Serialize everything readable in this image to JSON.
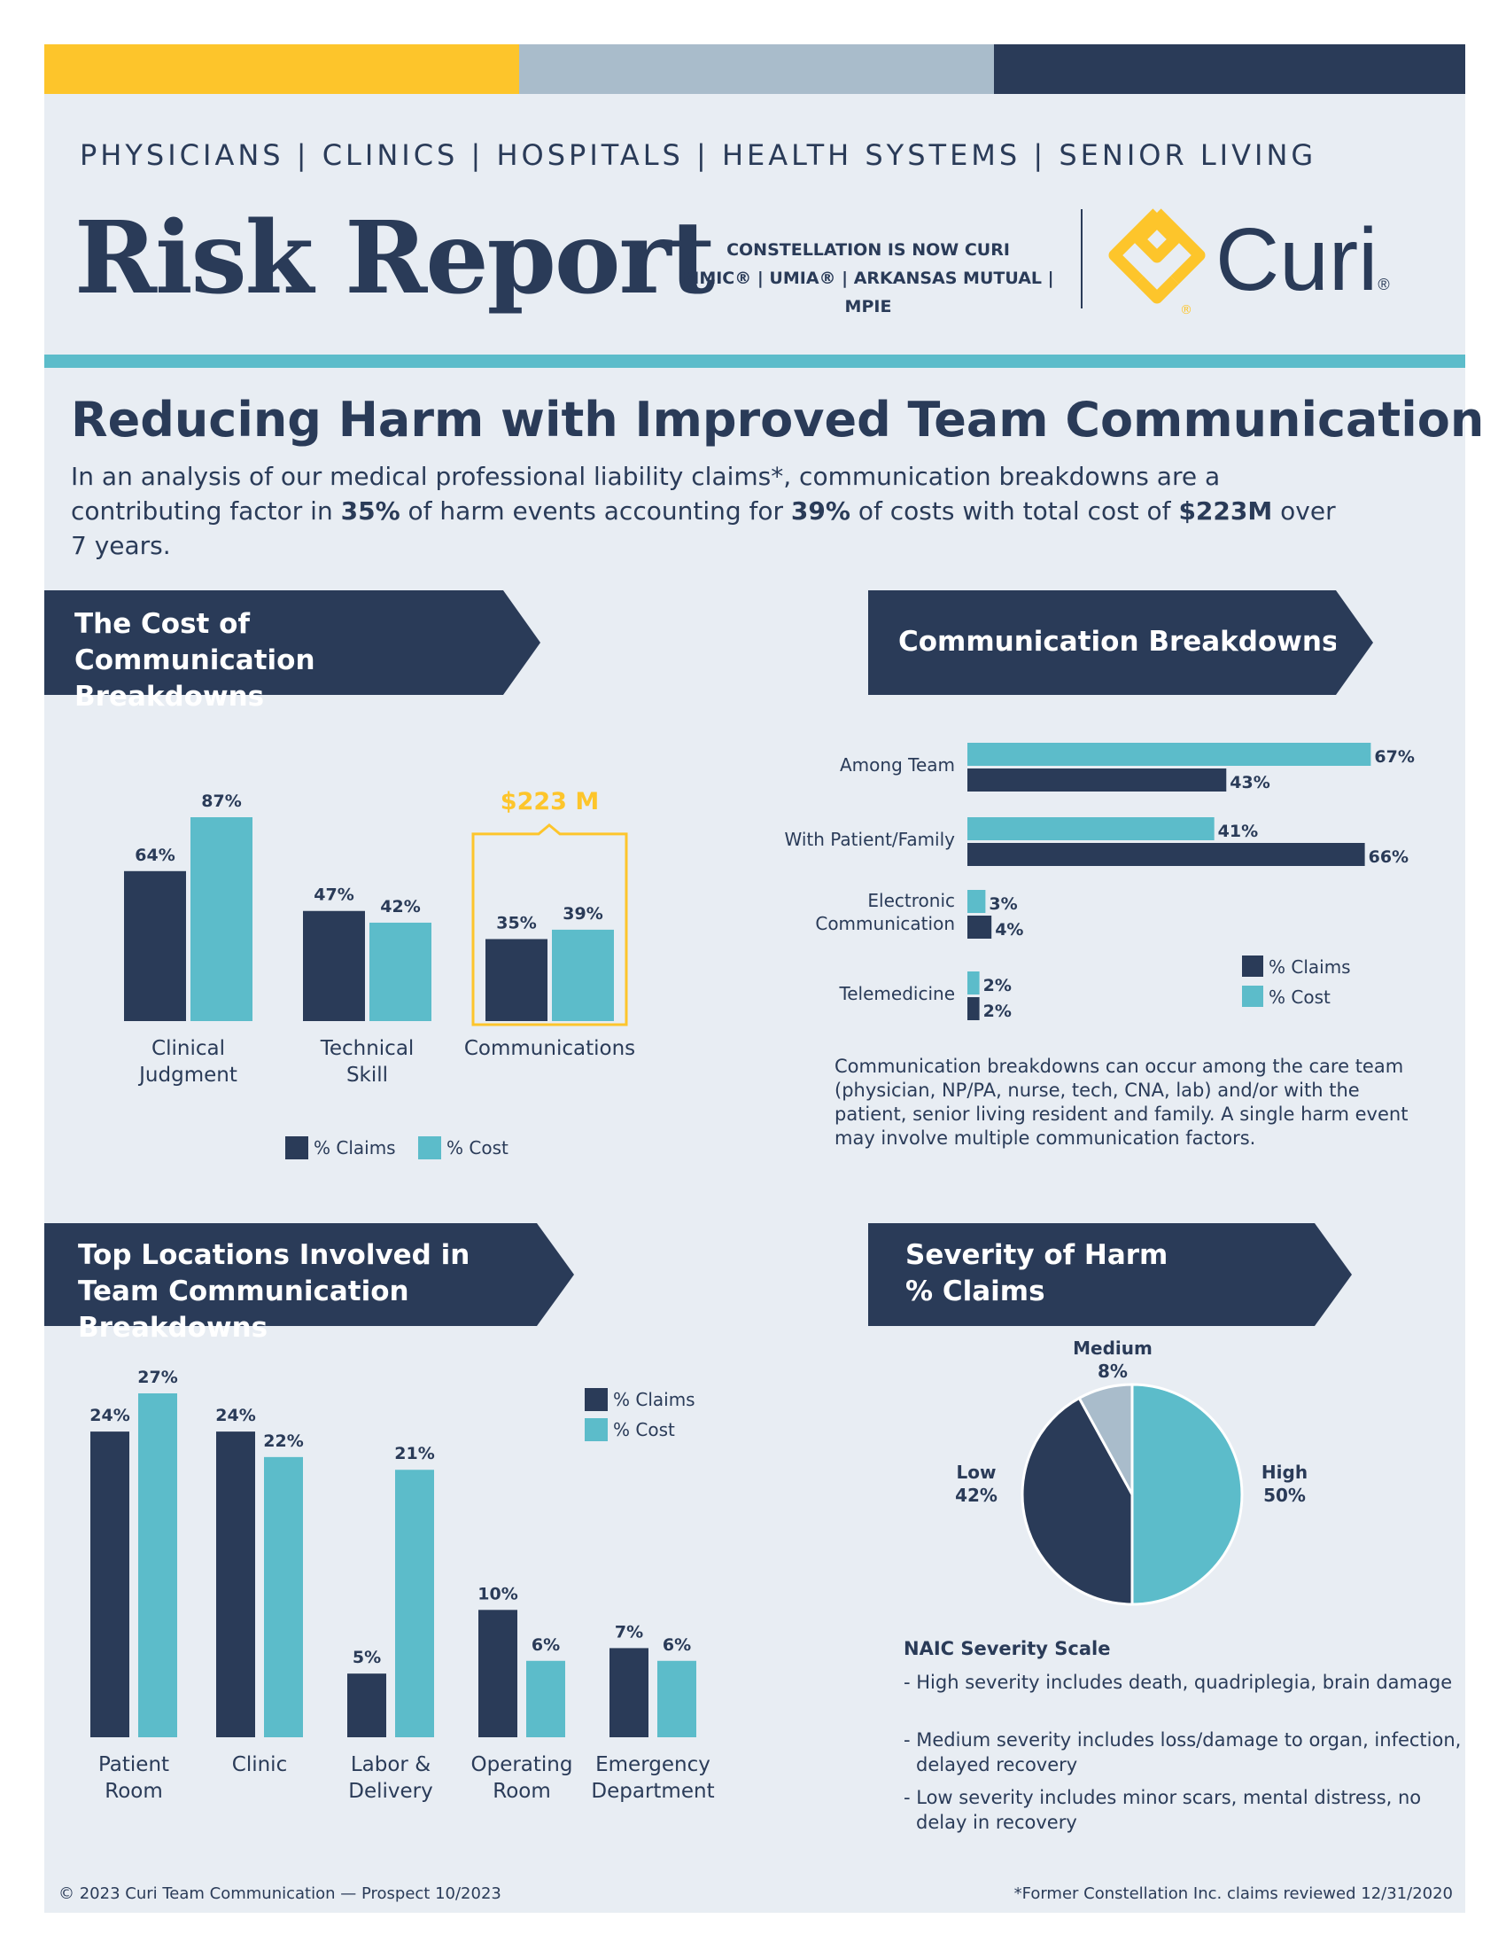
{
  "header": {
    "nav": [
      "PHYSICIANS",
      "CLINICS",
      "HOSPITALS",
      "HEALTH SYSTEMS",
      "SENIOR LIVING"
    ],
    "nav_separator": "|",
    "title": "Risk Report",
    "constellation_line1": "CONSTELLATION IS NOW CURI",
    "constellation_line2": "MMIC® | UMIA® | ARKANSAS MUTUAL | MPIE",
    "logo_text": "Curi",
    "logo_reg": "®",
    "stripe_colors": [
      "#fdc52b",
      "#a9bccb",
      "#2a3b58"
    ]
  },
  "headline": "Reducing Harm with Improved Team Communication",
  "intro": {
    "t1": "In an analysis of our medical professional liability claims*, communication breakdowns are a contributing factor in ",
    "b1": "35%",
    "t2": " of harm events accounting for ",
    "b2": "39%",
    "t3": " of costs with total cost of ",
    "b3": "$223M",
    "t4": " over 7 years."
  },
  "banners": {
    "cost": "The Cost of Communication Breakdowns",
    "breakdowns": "Communication Breakdowns",
    "locations": "Top Locations Involved in Team Communication Breakdowns",
    "severity": "Severity of Harm % Claims"
  },
  "colors": {
    "navy": "#2a3b58",
    "teal": "#5cbcca",
    "light": "#a9bccb",
    "gold": "#fdc52b"
  },
  "chart_data": [
    {
      "id": "cost",
      "type": "bar",
      "title": "The Cost of Communication Breakdowns",
      "categories": [
        "Clinical Judgment",
        "Technical Skill",
        "Communications"
      ],
      "series": [
        {
          "name": "% Claims",
          "values": [
            64,
            47,
            35
          ]
        },
        {
          "name": "% Cost",
          "values": [
            87,
            42,
            39
          ]
        }
      ],
      "value_suffix": "%",
      "callout": "$223 M",
      "ylim": [
        0,
        100
      ],
      "legend": "bottom"
    },
    {
      "id": "breakdowns",
      "type": "bar",
      "orientation": "horizontal",
      "title": "Communication Breakdowns",
      "categories": [
        "Among Team",
        "With Patient/Family",
        "Electronic Communication",
        "Telemedicine"
      ],
      "series": [
        {
          "name": "% Cost",
          "values": [
            67,
            41,
            3,
            2
          ]
        },
        {
          "name": "% Claims",
          "values": [
            43,
            66,
            4,
            2
          ]
        }
      ],
      "value_suffix": "%",
      "xlim": [
        0,
        70
      ],
      "legend": "bottom-right"
    },
    {
      "id": "locations",
      "type": "bar",
      "title": "Top Locations Involved in Team Communication Breakdowns",
      "categories": [
        "Patient Room",
        "Clinic",
        "Labor & Delivery",
        "Operating Room",
        "Emergency Department"
      ],
      "series": [
        {
          "name": "% Claims",
          "values": [
            24,
            24,
            5,
            10,
            7
          ]
        },
        {
          "name": "% Cost",
          "values": [
            27,
            22,
            21,
            6,
            6
          ]
        }
      ],
      "value_suffix": "%",
      "ylim": [
        0,
        28
      ],
      "legend": "top-right"
    },
    {
      "id": "severity",
      "type": "pie",
      "title": "Severity of Harm % Claims",
      "labels": [
        "High",
        "Low",
        "Medium"
      ],
      "values": [
        50,
        42,
        8
      ],
      "value_suffix": "%"
    }
  ],
  "breakdowns_note": "Communication breakdowns can occur among the care team (physician, NP/PA, nurse, tech, CNA, lab) and/or with the patient, senior living resident and family. A single harm event may involve multiple communication factors.",
  "severity_scale": {
    "title": "NAIC Severity Scale",
    "items": [
      "- High severity includes death, quadriplegia, brain damage",
      "- Medium severity includes loss/damage to organ, infection, delayed recovery",
      "- Low severity includes minor scars, mental distress, no delay in recovery"
    ]
  },
  "footer": {
    "left": "© 2023 Curi   Team Communication — Prospect 10/2023",
    "right": "*Former Constellation Inc. claims reviewed 12/31/2020"
  }
}
